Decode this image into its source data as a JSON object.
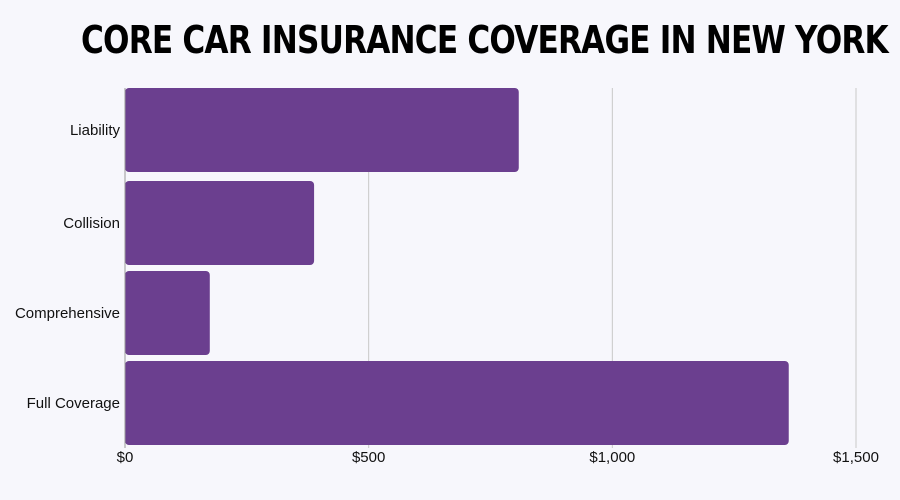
{
  "chart_data": {
    "type": "bar",
    "orientation": "horizontal",
    "title": "CORE CAR INSURANCE COVERAGE IN NEW YORK",
    "xlabel": "",
    "ylabel": "",
    "categories": [
      "Liability",
      "Collision",
      "Comprehensive",
      "Full Coverage"
    ],
    "values": [
      808,
      388,
      174,
      1362
    ],
    "xlim": [
      0,
      1500
    ],
    "ticks": [
      0,
      500,
      1000,
      1500
    ],
    "tick_labels": [
      "$0",
      "$500",
      "$1,000",
      "$1,500"
    ],
    "grid": "vertical",
    "legend": "none",
    "colors": {
      "bar": "#6b3f8f",
      "grid": "#c8c8c8",
      "axis": "#999999",
      "background": "#f7f7fc"
    }
  }
}
